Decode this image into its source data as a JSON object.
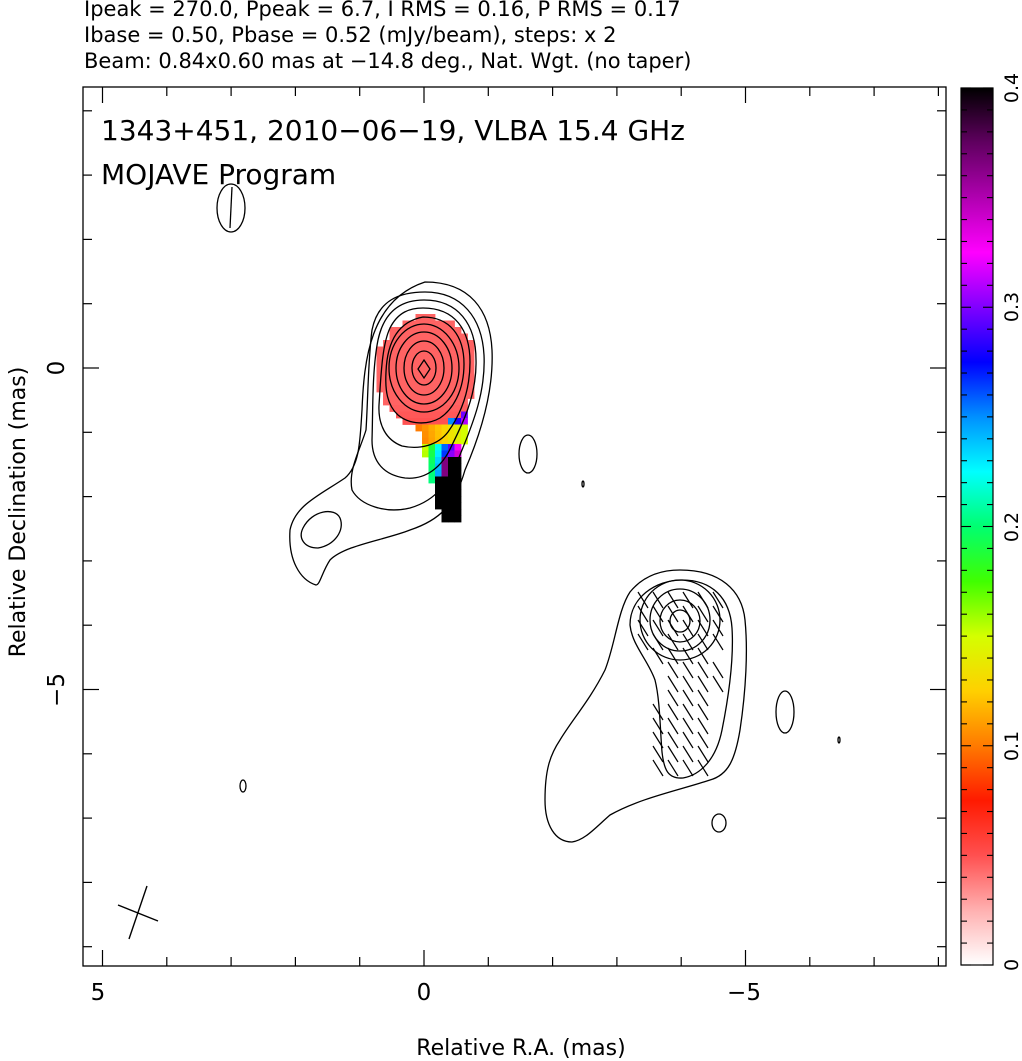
{
  "header": {
    "line1": "Ipeak = 270.0, Ppeak = 6.7, I RMS = 0.16, P RMS = 0.17",
    "line2": "Ibase = 0.50, Pbase = 0.52 (mJy/beam), steps: x 2",
    "line3": "Beam: 0.84x0.60 mas at −14.8 deg., Nat. Wgt. (no taper)"
  },
  "plot": {
    "title_line1": "1343+451, 2010−06−19, VLBA 15.4 GHz",
    "title_line2": "MOJAVE Program",
    "xlabel": "Relative R.A. (mas)",
    "ylabel": "Relative Declination (mas)"
  },
  "colors": {
    "contour": "#000000",
    "frame": "#000000"
  },
  "chart_data": {
    "type": "heatmap",
    "xlim": [
      5.3,
      -8.3
    ],
    "ylim": [
      -9.3,
      4.4
    ],
    "x_ticks": [
      5,
      0,
      -5
    ],
    "x_tick_labels": [
      "5",
      "0",
      "−5"
    ],
    "y_ticks": [
      0,
      -5
    ],
    "y_tick_labels": [
      "0",
      "−5"
    ],
    "colorbar": {
      "range": [
        0,
        0.4
      ],
      "ticks": [
        0,
        0.1,
        0.2,
        0.3,
        0.4
      ],
      "tick_labels": [
        "0",
        "0.1",
        "0.2",
        "0.3",
        "0.4"
      ],
      "stops": [
        "#ffffff",
        "#ffb0b0",
        "#ff5050",
        "#ff1a00",
        "#ff7a00",
        "#ffd000",
        "#d4ff00",
        "#40ff00",
        "#00ff70",
        "#00ffff",
        "#0090ff",
        "#0000ff",
        "#8000ff",
        "#ff00ff",
        "#b000b0",
        "#600060",
        "#000000"
      ]
    },
    "contour_levels_mJy_per_beam": [
      0.5,
      1,
      2,
      4,
      8,
      16,
      32,
      64,
      128,
      256
    ],
    "core": {
      "ra": 0.0,
      "dec": 0.0,
      "peak_mJy_per_beam": 270.0
    },
    "jet_component": {
      "ra": -4.1,
      "dec": -4.0
    },
    "beam_ellipse": {
      "ra": 3.0,
      "dec": 2.5,
      "major_mas": 0.84,
      "minor_mas": 0.6,
      "pa_deg": -14.8
    },
    "frac_pol_patch": [
      {
        "region": "core",
        "ra": 0.0,
        "dec": 0.0,
        "value": 0.05
      },
      {
        "region": "core-south",
        "ra": -0.3,
        "dec": -1.0,
        "value": 0.09
      },
      {
        "region": "transition",
        "ra": -0.4,
        "dec": -1.5,
        "value": 0.17
      },
      {
        "region": "transition",
        "ra": -0.5,
        "dec": -1.8,
        "value": 0.25
      },
      {
        "region": "edge",
        "ra": -0.55,
        "dec": -2.0,
        "value": 0.32
      },
      {
        "region": "edge",
        "ra": -0.6,
        "dec": -2.1,
        "value": 0.4
      }
    ]
  }
}
